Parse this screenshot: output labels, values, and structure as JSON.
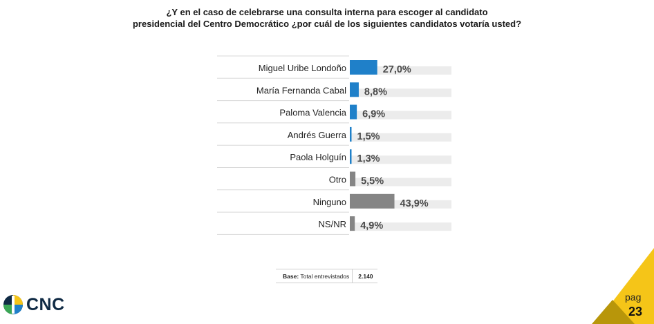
{
  "title": {
    "line1": "¿Y en el caso de celebrarse una consulta interna para escoger al candidato",
    "line2": "presidencial del Centro Democrático ¿por cuál de los siguientes candidatos votaría usted?"
  },
  "chart_data": {
    "type": "bar",
    "orientation": "horizontal",
    "categories": [
      "Miguel Uribe Londoño",
      "María Fernanda Cabal",
      "Paloma Valencia",
      "Andrés Guerra",
      "Paola Holguín",
      "Otro",
      "Ninguno",
      "NS/NR"
    ],
    "values": [
      27.0,
      8.8,
      6.9,
      1.5,
      1.3,
      5.5,
      43.9,
      4.9
    ],
    "labels": [
      "27,0%",
      "8,8%",
      "6,9%",
      "1,5%",
      "1,3%",
      "5,5%",
      "43,9%",
      "4,9%"
    ],
    "bar_colors": [
      "#1f80c9",
      "#1f80c9",
      "#1f80c9",
      "#1f80c9",
      "#1f80c9",
      "#858585",
      "#858585",
      "#858585"
    ],
    "track_color": "#ececec",
    "xlim": [
      0,
      100
    ]
  },
  "base": {
    "label_bold": "Base:",
    "label": "Total entrevistados",
    "value": "2.140"
  },
  "logo": {
    "text": "CNC"
  },
  "page": {
    "label": "pag",
    "number": "23"
  },
  "colors": {
    "accent_yellow": "#f5c518",
    "dark_gold": "#b8960a",
    "brand_navy": "#0f2a44"
  }
}
